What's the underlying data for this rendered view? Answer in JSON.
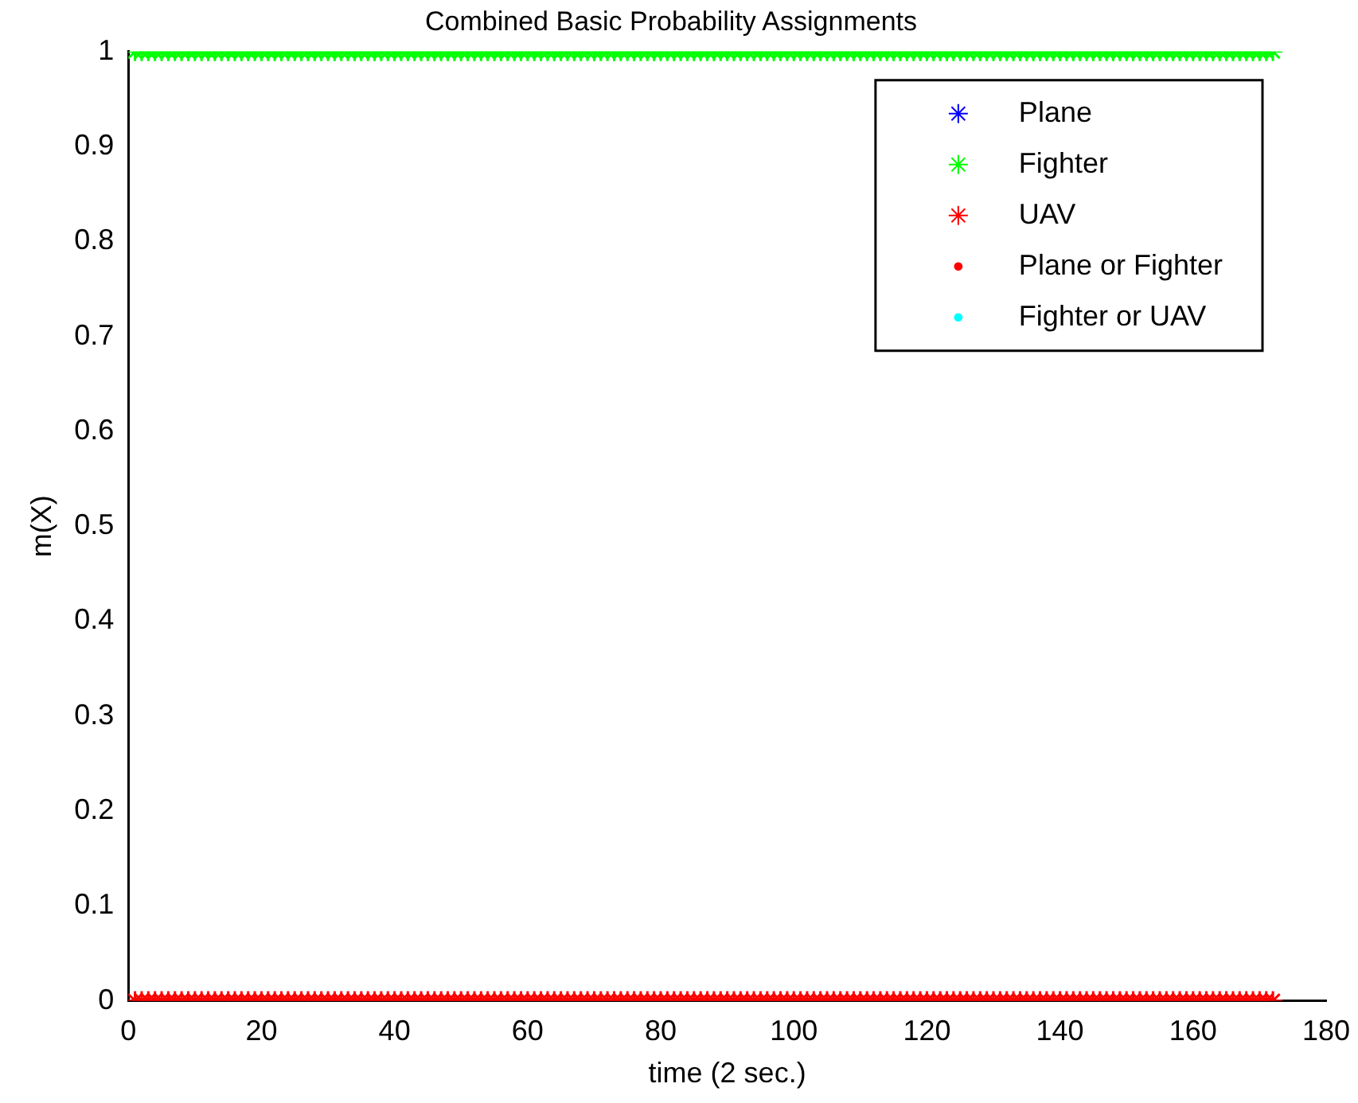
{
  "chart_data": {
    "type": "scatter",
    "title": "Combined Basic Probability Assignments",
    "xlabel": "time (2 sec.)",
    "ylabel": "m(X)",
    "xlim": [
      0,
      180
    ],
    "xticks": [
      0,
      20,
      40,
      60,
      80,
      100,
      120,
      140,
      160,
      180
    ],
    "ylim": [
      0,
      1
    ],
    "yticks": [
      0,
      0.1,
      0.2,
      0.3,
      0.4,
      0.5,
      0.6,
      0.7,
      0.8,
      0.9,
      1
    ],
    "grid": false,
    "legend": "top right",
    "x": [
      1,
      2,
      3,
      4,
      5,
      6,
      7,
      8,
      9,
      10,
      11,
      12,
      13,
      14,
      15,
      16,
      17,
      18,
      19,
      20,
      21,
      22,
      23,
      24,
      25,
      26,
      27,
      28,
      29,
      30,
      31,
      32,
      33,
      34,
      35,
      36,
      37,
      38,
      39,
      40,
      41,
      42,
      43,
      44,
      45,
      46,
      47,
      48,
      49,
      50,
      51,
      52,
      53,
      54,
      55,
      56,
      57,
      58,
      59,
      60,
      61,
      62,
      63,
      64,
      65,
      66,
      67,
      68,
      69,
      70,
      71,
      72,
      73,
      74,
      75,
      76,
      77,
      78,
      79,
      80,
      81,
      82,
      83,
      84,
      85,
      86,
      87,
      88,
      89,
      90,
      91,
      92,
      93,
      94,
      95,
      96,
      97,
      98,
      99,
      100,
      101,
      102,
      103,
      104,
      105,
      106,
      107,
      108,
      109,
      110,
      111,
      112,
      113,
      114,
      115,
      116,
      117,
      118,
      119,
      120,
      121,
      122,
      123,
      124,
      125,
      126,
      127,
      128,
      129,
      130,
      131,
      132,
      133,
      134,
      135,
      136,
      137,
      138,
      139,
      140,
      141,
      142,
      143,
      144,
      145,
      146,
      147,
      148,
      149,
      150,
      151,
      152,
      153,
      154,
      155,
      156,
      157,
      158,
      159,
      160,
      161,
      162,
      163,
      164,
      165,
      166,
      167,
      168,
      169,
      170,
      171,
      172
    ],
    "series": [
      {
        "name": "Plane",
        "color": "#0000ff",
        "marker": "cross",
        "values": [
          null,
          null,
          null,
          null,
          null,
          null,
          null,
          null,
          null,
          null,
          null,
          null,
          null,
          null,
          null,
          null,
          null,
          null,
          null,
          null,
          null,
          null,
          null,
          null,
          null,
          null,
          null,
          null,
          null,
          null,
          null,
          null,
          null,
          null,
          null,
          null,
          null,
          null,
          null,
          null,
          null,
          null,
          null,
          null,
          null,
          null,
          null,
          null,
          null,
          null,
          null,
          null,
          null,
          null,
          null,
          null,
          null,
          null,
          null,
          null,
          null,
          null,
          null,
          null,
          null,
          null,
          null,
          null,
          null,
          null,
          null,
          null,
          null,
          null,
          null,
          null,
          null,
          null,
          null,
          null,
          null,
          null,
          null,
          null,
          null,
          null,
          null,
          null,
          null,
          null,
          null,
          null,
          null,
          null,
          null,
          null,
          null,
          null,
          null,
          null,
          null,
          null,
          null,
          null,
          null,
          null,
          null,
          null,
          null,
          null,
          null,
          null,
          null,
          null,
          null,
          null,
          null,
          null,
          null,
          null,
          null,
          null,
          null,
          null,
          null,
          null,
          null,
          null,
          null,
          null,
          null,
          null,
          null,
          null,
          null,
          null,
          null,
          null,
          null,
          null,
          null,
          null,
          null,
          null,
          null,
          null,
          null,
          null,
          null,
          null,
          null,
          null,
          null,
          null,
          null,
          null,
          null,
          null,
          null,
          null,
          null,
          null,
          null,
          null,
          null,
          null,
          null,
          null,
          null,
          null,
          null,
          null
        ]
      },
      {
        "name": "Fighter",
        "color": "#00ff00",
        "marker": "cross",
        "values": [
          1,
          1,
          1,
          1,
          1,
          1,
          1,
          1,
          1,
          1,
          1,
          1,
          1,
          1,
          1,
          1,
          1,
          1,
          1,
          1,
          1,
          1,
          1,
          1,
          1,
          1,
          1,
          1,
          1,
          1,
          1,
          1,
          1,
          1,
          1,
          1,
          1,
          1,
          1,
          1,
          1,
          1,
          1,
          1,
          1,
          1,
          1,
          1,
          1,
          1,
          1,
          1,
          1,
          1,
          1,
          1,
          1,
          1,
          1,
          1,
          1,
          1,
          1,
          1,
          1,
          1,
          1,
          1,
          1,
          1,
          1,
          1,
          1,
          1,
          1,
          1,
          1,
          1,
          1,
          1,
          1,
          1,
          1,
          1,
          1,
          1,
          1,
          1,
          1,
          1,
          1,
          1,
          1,
          1,
          1,
          1,
          1,
          1,
          1,
          1,
          1,
          1,
          1,
          1,
          1,
          1,
          1,
          1,
          1,
          1,
          1,
          1,
          1,
          1,
          1,
          1,
          1,
          1,
          1,
          1,
          1,
          1,
          1,
          1,
          1,
          1,
          1,
          1,
          1,
          1,
          1,
          1,
          1,
          1,
          1,
          1,
          1,
          1,
          1,
          1,
          1,
          1,
          1,
          1,
          1,
          1,
          1,
          1,
          1,
          1,
          1,
          1,
          1,
          1,
          1,
          1,
          1,
          1,
          1,
          1,
          1,
          1,
          1,
          1,
          1,
          1,
          1,
          1,
          1,
          1,
          1,
          1
        ]
      },
      {
        "name": "UAV",
        "color": "#ff0000",
        "marker": "cross",
        "values": [
          0,
          0,
          0,
          0,
          0,
          0,
          0,
          0,
          0,
          0,
          0,
          0,
          0,
          0,
          0,
          0,
          0,
          0,
          0,
          0,
          0,
          0,
          0,
          0,
          0,
          0,
          0,
          0,
          0,
          0,
          0,
          0,
          0,
          0,
          0,
          0,
          0,
          0,
          0,
          0,
          0,
          0,
          0,
          0,
          0,
          0,
          0,
          0,
          0,
          0,
          0,
          0,
          0,
          0,
          0,
          0,
          0,
          0,
          0,
          0,
          0,
          0,
          0,
          0,
          0,
          0,
          0,
          0,
          0,
          0,
          0,
          0,
          0,
          0,
          0,
          0,
          0,
          0,
          0,
          0,
          0,
          0,
          0,
          0,
          0,
          0,
          0,
          0,
          0,
          0,
          0,
          0,
          0,
          0,
          0,
          0,
          0,
          0,
          0,
          0,
          0,
          0,
          0,
          0,
          0,
          0,
          0,
          0,
          0,
          0,
          0,
          0,
          0,
          0,
          0,
          0,
          0,
          0,
          0,
          0,
          0,
          0,
          0,
          0,
          0,
          0,
          0,
          0,
          0,
          0,
          0,
          0,
          0,
          0,
          0,
          0,
          0,
          0,
          0,
          0,
          0,
          0,
          0,
          0,
          0,
          0,
          0,
          0,
          0,
          0,
          0,
          0,
          0,
          0,
          0,
          0,
          0,
          0,
          0,
          0,
          0,
          0,
          0,
          0,
          0,
          0,
          0,
          0,
          0,
          0,
          0,
          0
        ]
      },
      {
        "name": "Plane or Fighter",
        "color": "#ff0000",
        "marker": "circle",
        "values": [
          null,
          null,
          null,
          null,
          null,
          null,
          null,
          null,
          null,
          null,
          null,
          null,
          null,
          null,
          null,
          null,
          null,
          null,
          null,
          null,
          null,
          null,
          null,
          null,
          null,
          null,
          null,
          null,
          null,
          null,
          null,
          null,
          null,
          null,
          null,
          null,
          null,
          null,
          null,
          null,
          null,
          null,
          null,
          null,
          null,
          null,
          null,
          null,
          null,
          null,
          null,
          null,
          null,
          null,
          null,
          null,
          null,
          null,
          null,
          null,
          null,
          null,
          null,
          null,
          null,
          null,
          null,
          null,
          null,
          null,
          null,
          null,
          null,
          null,
          null,
          null,
          null,
          null,
          null,
          null,
          null,
          null,
          null,
          null,
          null,
          null,
          null,
          null,
          null,
          null,
          null,
          null,
          null,
          null,
          null,
          null,
          null,
          null,
          null,
          null,
          null,
          null,
          null,
          null,
          null,
          null,
          null,
          null,
          null,
          null,
          null,
          null,
          null,
          null,
          null,
          null,
          null,
          null,
          null,
          null,
          null,
          null,
          null,
          null,
          null,
          null,
          null,
          null,
          null,
          null,
          null,
          null,
          null,
          null,
          null,
          null,
          null,
          null,
          null,
          null,
          null,
          null,
          null,
          null,
          null,
          null,
          null,
          null,
          null,
          null,
          null,
          null,
          null,
          null,
          null,
          null,
          null,
          null,
          null,
          null,
          null,
          null,
          null,
          null,
          null,
          null,
          null,
          null,
          null,
          null,
          null,
          null
        ]
      },
      {
        "name": "Fighter or UAV",
        "color": "#00ffff",
        "marker": "circle",
        "values": [
          null,
          null,
          null,
          null,
          null,
          null,
          null,
          null,
          null,
          null,
          null,
          null,
          null,
          null,
          null,
          null,
          null,
          null,
          null,
          null,
          null,
          null,
          null,
          null,
          null,
          null,
          null,
          null,
          null,
          null,
          null,
          null,
          null,
          null,
          null,
          null,
          null,
          null,
          null,
          null,
          null,
          null,
          null,
          null,
          null,
          null,
          null,
          null,
          null,
          null,
          null,
          null,
          null,
          null,
          null,
          null,
          null,
          null,
          null,
          null,
          null,
          null,
          null,
          null,
          null,
          null,
          null,
          null,
          null,
          null,
          null,
          null,
          null,
          null,
          null,
          null,
          null,
          null,
          null,
          null,
          null,
          null,
          null,
          null,
          null,
          null,
          null,
          null,
          null,
          null,
          null,
          null,
          null,
          null,
          null,
          null,
          null,
          null,
          null,
          null,
          null,
          null,
          null,
          null,
          null,
          null,
          null,
          null,
          null,
          null,
          null,
          null,
          null,
          null,
          null,
          null,
          null,
          null,
          null,
          null,
          null,
          null,
          null,
          null,
          null,
          null,
          null,
          null,
          null,
          null,
          null,
          null,
          null,
          null,
          null,
          null,
          null,
          null,
          null,
          null,
          null,
          null,
          null,
          null,
          null,
          null,
          null,
          null,
          null,
          null,
          null,
          null,
          null,
          null,
          null,
          null,
          null,
          null,
          null,
          null,
          null,
          null,
          null,
          null,
          null,
          null,
          null,
          null,
          null,
          null,
          null,
          null
        ]
      }
    ]
  }
}
